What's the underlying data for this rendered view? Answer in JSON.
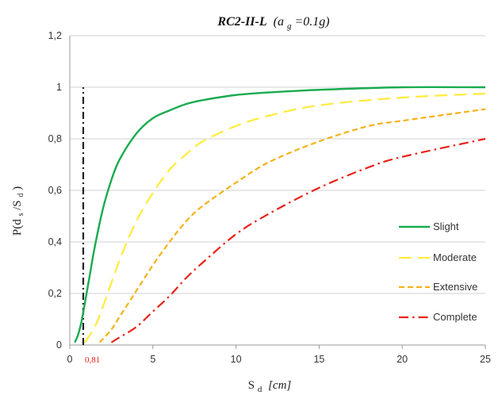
{
  "chart_data": {
    "type": "line",
    "title": {
      "main": "RC2-II-L",
      "open": "(a",
      "sub": "g",
      "rest": "=0.1g)"
    },
    "xlabel": {
      "main": "S",
      "sub": "d",
      "unit": "[cm]"
    },
    "ylabel": {
      "main": "P(d",
      "sub1": "s",
      "mid": "/S",
      "sub2": "d",
      "close": ")"
    },
    "xlim": [
      0,
      25
    ],
    "ylim": [
      0,
      1.2
    ],
    "xticks": [
      0,
      5,
      10,
      15,
      20,
      25
    ],
    "xtick_labels": [
      "0",
      "5",
      "10",
      "15",
      "20",
      "25"
    ],
    "yticks": [
      0,
      0.2,
      0.4,
      0.6,
      0.8,
      1,
      1.2
    ],
    "ytick_labels": [
      "0",
      "0,2",
      "0,4",
      "0,6",
      "0,8",
      "1",
      "1,2"
    ],
    "grid": "horizontal",
    "legend_position": "right",
    "colors": {
      "slight": "#1aab50",
      "moderate": "#ffeb3b",
      "extensive": "#f5b21a",
      "complete": "#e8221b",
      "marker": "#222222",
      "marker_label": "#e8221b"
    },
    "series": [
      {
        "name": "Slight",
        "style": "solid",
        "x": [
          0.3,
          0.5,
          0.7,
          0.9,
          1.2,
          1.5,
          2.0,
          2.5,
          3.0,
          4.0,
          5.0,
          6.0,
          7.0,
          8.0,
          10.0,
          12.0,
          15.0,
          20.0,
          25.0
        ],
        "y": [
          0.01,
          0.04,
          0.09,
          0.16,
          0.27,
          0.38,
          0.53,
          0.64,
          0.72,
          0.82,
          0.88,
          0.91,
          0.935,
          0.95,
          0.97,
          0.98,
          0.99,
          1.0,
          1.0
        ]
      },
      {
        "name": "Moderate",
        "style": "dash",
        "x": [
          0.9,
          1.5,
          2.0,
          3.0,
          4.0,
          5.0,
          6.0,
          7.0,
          8.0,
          10.0,
          12.0,
          15.0,
          20.0,
          25.0
        ],
        "y": [
          0.01,
          0.07,
          0.15,
          0.33,
          0.48,
          0.59,
          0.68,
          0.74,
          0.79,
          0.85,
          0.89,
          0.93,
          0.96,
          0.975
        ]
      },
      {
        "name": "Extensive",
        "style": "shortdash",
        "x": [
          1.8,
          2.5,
          3.0,
          4.0,
          5.0,
          6.0,
          7.0,
          8.0,
          10.0,
          12.0,
          15.0,
          18.0,
          20.0,
          25.0
        ],
        "y": [
          0.01,
          0.06,
          0.11,
          0.21,
          0.31,
          0.4,
          0.48,
          0.54,
          0.63,
          0.71,
          0.79,
          0.85,
          0.87,
          0.915
        ]
      },
      {
        "name": "Complete",
        "style": "dashdot",
        "x": [
          2.5,
          3.0,
          4.0,
          5.0,
          6.0,
          7.0,
          8.0,
          10.0,
          12.0,
          15.0,
          18.0,
          20.0,
          25.0
        ],
        "y": [
          0.01,
          0.03,
          0.07,
          0.13,
          0.19,
          0.26,
          0.32,
          0.43,
          0.51,
          0.61,
          0.69,
          0.73,
          0.8
        ]
      }
    ],
    "marker_line": {
      "x": 0.81,
      "y_top": 1.0,
      "label": "0,81"
    }
  }
}
